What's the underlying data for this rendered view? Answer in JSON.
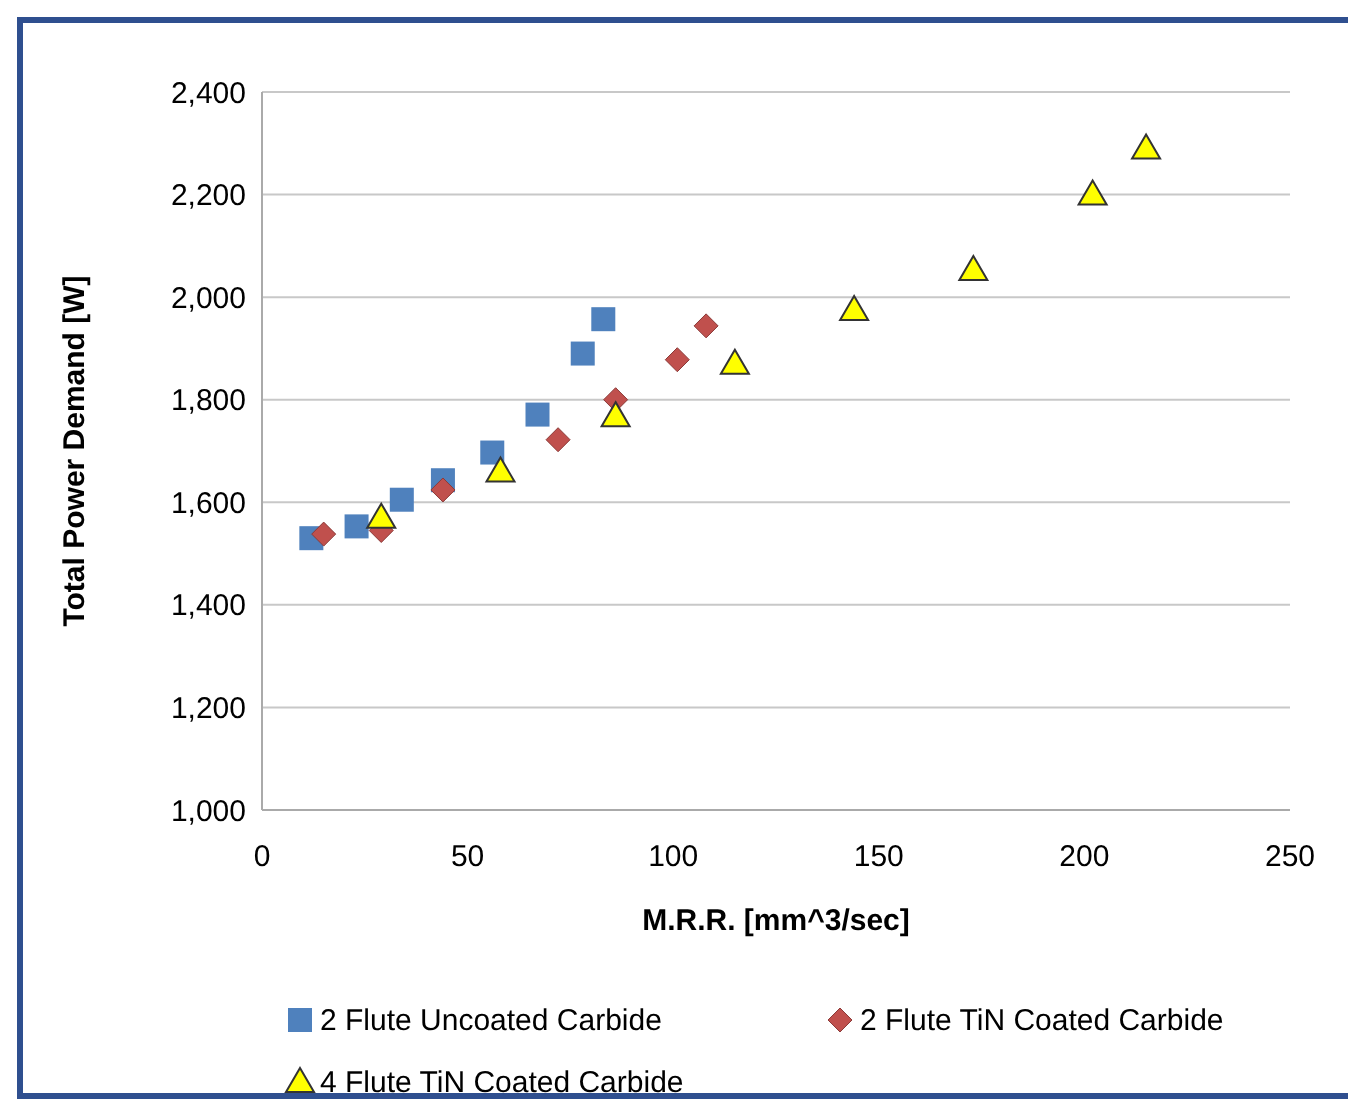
{
  "chart_data": {
    "type": "scatter",
    "xlabel": "M.R.R. [mm^3/sec]",
    "ylabel": "Total Power Demand [W]",
    "xlim": [
      0,
      250
    ],
    "xticks": [
      0,
      50,
      100,
      150,
      200,
      250
    ],
    "ylim": [
      1000,
      2400
    ],
    "yticks": [
      {
        "value": 1000,
        "label": "1,000"
      },
      {
        "value": 1200,
        "label": "1,200"
      },
      {
        "value": 1400,
        "label": "1,400"
      },
      {
        "value": 1600,
        "label": "1,600"
      },
      {
        "value": 1800,
        "label": "1,800"
      },
      {
        "value": 2000,
        "label": "2,000"
      },
      {
        "value": 2200,
        "label": "2,200"
      },
      {
        "value": 2400,
        "label": "2,400"
      }
    ],
    "grid": "y",
    "legend": "bottom",
    "series": [
      {
        "name": "2 Flute Uncoated Carbide",
        "color": "#4f81bd",
        "marker": "square",
        "x": [
          12,
          23,
          34,
          44,
          56,
          67,
          78,
          83
        ],
        "values": [
          1530,
          1553,
          1605,
          1643,
          1697,
          1771,
          1890,
          1957
        ]
      },
      {
        "name": "2 Flute TiN Coated Carbide",
        "color": "#c0504d",
        "marker": "diamond",
        "x": [
          15,
          29,
          44,
          72,
          86,
          101,
          108
        ],
        "values": [
          1538,
          1545,
          1624,
          1722,
          1800,
          1878,
          1944
        ]
      },
      {
        "name": "4 Flute TiN Coated Carbide",
        "color": "#ffff00",
        "marker": "triangle",
        "x": [
          29,
          58,
          86,
          115,
          144,
          173,
          202,
          215
        ],
        "values": [
          1570,
          1660,
          1768,
          1870,
          1975,
          2053,
          2200,
          2290
        ]
      }
    ]
  }
}
